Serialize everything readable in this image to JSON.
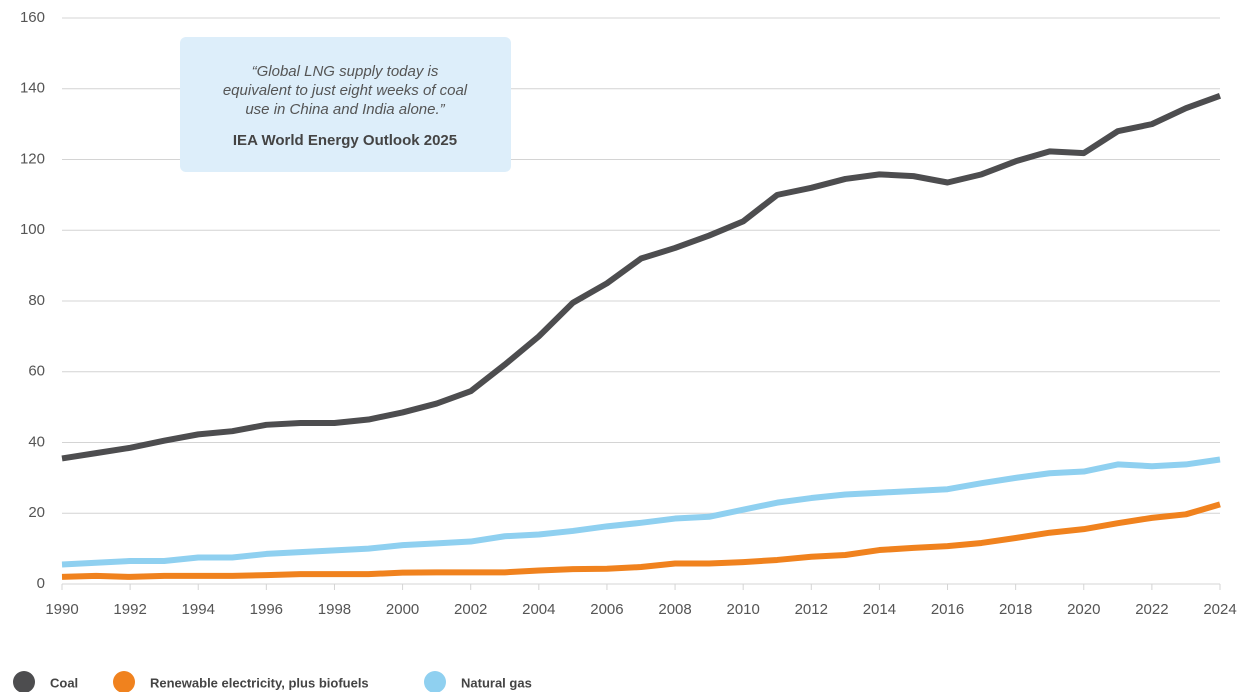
{
  "chart_data": {
    "type": "line",
    "x": [
      1990,
      1991,
      1992,
      1993,
      1994,
      1995,
      1996,
      1997,
      1998,
      1999,
      2000,
      2001,
      2002,
      2003,
      2004,
      2005,
      2006,
      2007,
      2008,
      2009,
      2010,
      2011,
      2012,
      2013,
      2014,
      2015,
      2016,
      2017,
      2018,
      2019,
      2020,
      2021,
      2022,
      2023,
      2024
    ],
    "xlim": [
      1990,
      2024
    ],
    "xticks": [
      1990,
      1992,
      1994,
      1996,
      1998,
      2000,
      2002,
      2004,
      2006,
      2008,
      2010,
      2012,
      2014,
      2016,
      2018,
      2020,
      2022,
      2024
    ],
    "ylim": [
      0,
      160
    ],
    "yticks": [
      0,
      20,
      40,
      60,
      80,
      100,
      120,
      140,
      160
    ],
    "grid": true,
    "legend": "bottom",
    "series": [
      {
        "name": "Coal",
        "color": "#4d4d4f",
        "values": [
          35.5,
          37,
          38.5,
          40.5,
          42.3,
          43.2,
          45,
          45.5,
          45.5,
          46.5,
          48.5,
          51,
          54.5,
          62,
          70,
          79.5,
          85,
          92,
          95,
          98.5,
          102.5,
          110,
          112,
          114.5,
          115.8,
          115.3,
          113.5,
          115.8,
          119.5,
          122.3,
          121.8,
          128,
          130,
          134.5,
          138
        ]
      },
      {
        "name": "Renewable electricity, plus biofuels",
        "color": "#f0821e",
        "values": [
          2,
          2.3,
          2,
          2.3,
          2.3,
          2.3,
          2.5,
          2.8,
          2.8,
          2.8,
          3.2,
          3.3,
          3.3,
          3.3,
          3.8,
          4.2,
          4.3,
          4.8,
          5.8,
          5.8,
          6.2,
          6.8,
          7.7,
          8.2,
          9.6,
          10.2,
          10.7,
          11.6,
          13,
          14.5,
          15.5,
          17.2,
          18.7,
          19.7,
          22.5
        ]
      },
      {
        "name": "Natural gas",
        "color": "#8fd0f0",
        "values": [
          5.5,
          6,
          6.5,
          6.5,
          7.5,
          7.5,
          8.5,
          9,
          9.5,
          10,
          11,
          11.5,
          12,
          13.5,
          14,
          15,
          16.3,
          17.3,
          18.5,
          19,
          21,
          23,
          24.3,
          25.3,
          25.8,
          26.3,
          26.8,
          28.5,
          30,
          31.3,
          31.8,
          33.8,
          33.3,
          33.8,
          35.2
        ]
      }
    ],
    "annotation": {
      "quote": [
        "“Global LNG supply today is",
        "equivalent to just eight weeks of coal",
        "use in China and India alone.”"
      ],
      "source": "IEA World Energy Outlook 2025"
    }
  }
}
